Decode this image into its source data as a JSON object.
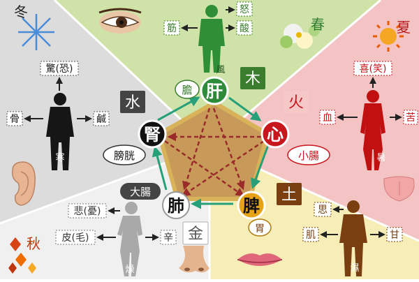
{
  "organs": {
    "liver": {
      "label": "肝",
      "color": "#2e8b3a"
    },
    "heart": {
      "label": "心",
      "color": "#c8161d"
    },
    "spleen": {
      "label": "脾",
      "color": "#e6a317"
    },
    "lung": {
      "label": "肺",
      "color": "#ffffff"
    },
    "kidney": {
      "label": "腎",
      "color": "#111111"
    }
  },
  "elements": {
    "wood": "木",
    "fire": "火",
    "earth": "土",
    "metal": "金",
    "water": "水"
  },
  "paired_organs": {
    "gallbladder": "膽",
    "small_intestine": "小腸",
    "stomach": "胃",
    "large_intestine": "大腸",
    "bladder": "膀胱"
  },
  "seasons": {
    "spring": "春",
    "summer": "夏",
    "autumn": "秋",
    "winter": "冬"
  },
  "climates": {
    "wind": "風",
    "heat": "暑",
    "damp": "濕",
    "dry": "燥",
    "cold": "寒"
  },
  "emotions": {
    "anger": "怒",
    "joy": "喜(笑)",
    "thought": "思",
    "grief": "悲(憂)",
    "fear": "驚(恐)"
  },
  "tissues": {
    "tendon": "筋",
    "blood": "血",
    "flesh": "肌",
    "skin": "皮(毛)",
    "bone": "骨"
  },
  "tastes": {
    "sour": "酸",
    "bitter": "苦",
    "sweet": "甘",
    "pungent": "辛",
    "salty": "鹹"
  },
  "zone_colors": {
    "spring": "#cfe3a8",
    "summer": "#f4c2c2",
    "late_summer": "#f6ecb0",
    "autumn": "#eeeeee",
    "winter": "#d9d9d9"
  },
  "figure_colors": {
    "wood": "#2f8f36",
    "fire": "#c01010",
    "earth": "#7a3f10",
    "metal": "#a9a9a9",
    "water": "#161616"
  }
}
